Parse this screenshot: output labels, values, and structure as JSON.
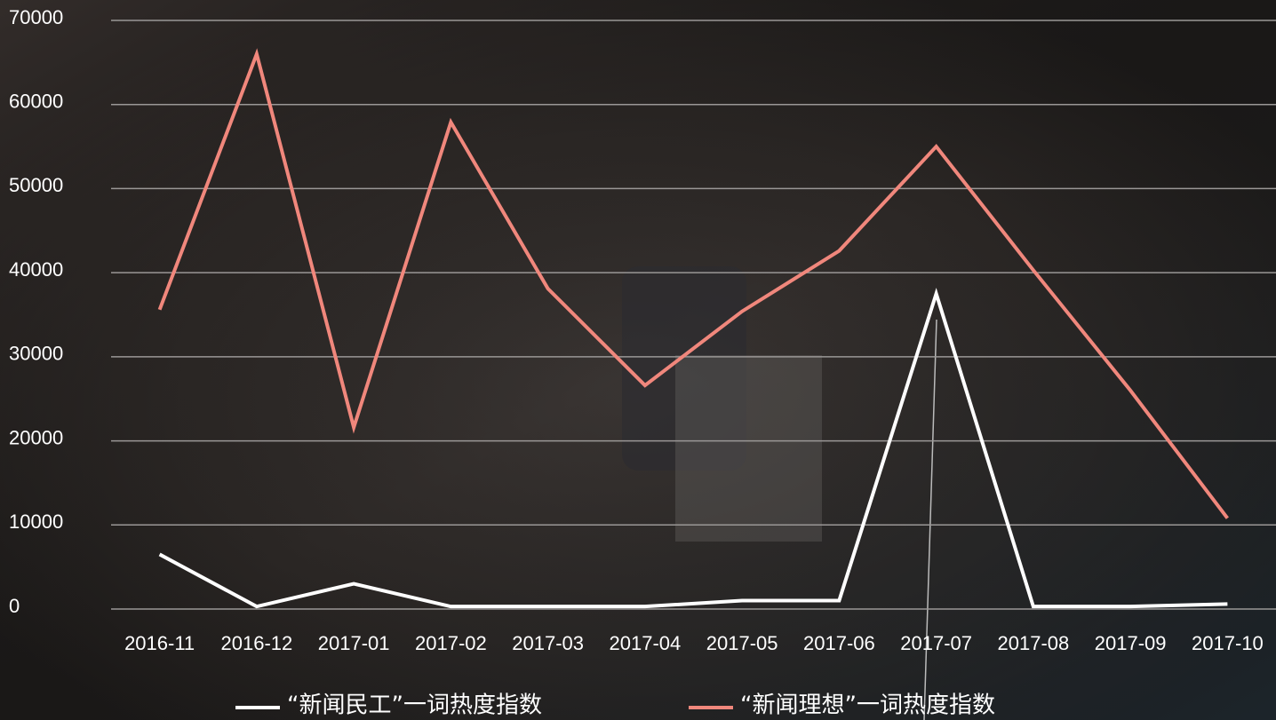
{
  "chart_data": {
    "type": "line",
    "categories": [
      "2016-11",
      "2016-12",
      "2017-01",
      "2017-02",
      "2017-03",
      "2017-04",
      "2017-05",
      "2017-06",
      "2017-07",
      "2017-08",
      "2017-09",
      "2017-10"
    ],
    "series": [
      {
        "name": "“新闻民工”一词热度指数",
        "color": "#ffffff",
        "values": [
          6500,
          300,
          3000,
          300,
          300,
          300,
          1000,
          1000,
          37500,
          300,
          300,
          600
        ]
      },
      {
        "name": "“新闻理想”一词热度指数",
        "color": "#f0877c",
        "values": [
          35600,
          66000,
          21600,
          57900,
          38100,
          26600,
          35400,
          42600,
          55000,
          40300,
          26000,
          10800
        ]
      }
    ],
    "ylim": [
      0,
      70000
    ],
    "yticks": [
      0,
      10000,
      20000,
      30000,
      40000,
      50000,
      60000,
      70000
    ],
    "grid": true,
    "legend": "bottom"
  }
}
